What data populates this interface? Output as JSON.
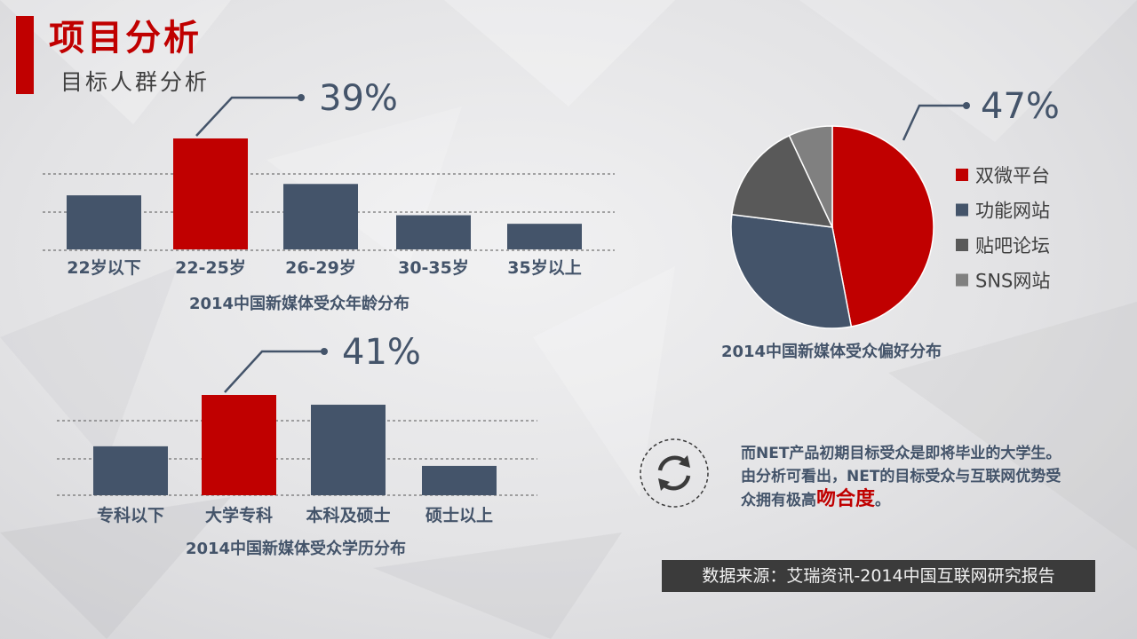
{
  "header": {
    "title": "项目分析",
    "subtitle": "目标人群分析"
  },
  "colors": {
    "accent": "#c00000",
    "slate": "#44546a",
    "dark_gray": "#595959",
    "gray": "#808080"
  },
  "chart_data": [
    {
      "type": "bar",
      "title": "2014中国新媒体受众年龄分布",
      "categories": [
        "22岁以下",
        "22-25岁",
        "26-29岁",
        "30-35岁",
        "35岁以上"
      ],
      "values": [
        19,
        39,
        23,
        12,
        9
      ],
      "highlight_index": 1,
      "callout": "39%",
      "grid": "dashed",
      "ylim": [
        0,
        39
      ]
    },
    {
      "type": "bar",
      "title": "2014中国新媒体受众学历分布",
      "categories": [
        "专科以下",
        "大学专科",
        "本科及硕士",
        "硕士以上"
      ],
      "values": [
        20,
        41,
        37,
        12
      ],
      "highlight_index": 1,
      "callout": "41%",
      "grid": "dashed",
      "ylim": [
        0,
        41
      ]
    },
    {
      "type": "pie",
      "title": "2014中国新媒体受众偏好分布",
      "labels": [
        "双微平台",
        "功能网站",
        "贴吧论坛",
        "SNS网站"
      ],
      "values": [
        47,
        30,
        16,
        7
      ],
      "colors": [
        "#c00000",
        "#44546a",
        "#595959",
        "#808080"
      ],
      "callout": "47%",
      "legend": "right"
    }
  ],
  "note": {
    "text": "而NET产品初期目标受众是即将毕业的大学生。由分析可看出，NET的目标受众与互联网优势受众拥有极高",
    "highlight": "吻合度",
    "end": "。",
    "icon": "refresh-icon"
  },
  "source": "数据来源：艾瑞资讯-2014中国互联网研究报告"
}
